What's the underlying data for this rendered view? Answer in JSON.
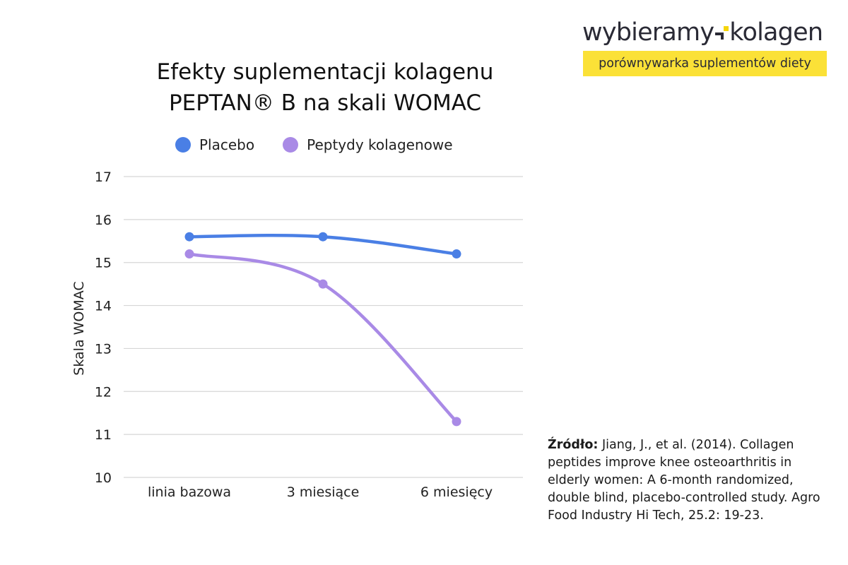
{
  "logo": {
    "name_left": "wybieramy",
    "name_right": "kolagen",
    "tagline": "porównywarka suplementów diety",
    "tagline_bg": "#fbe137"
  },
  "source": {
    "label": "Źródło:",
    "text": " Jiang, J., et al. (2014). Collagen peptides improve knee osteoarthritis in elderly women: A 6-month randomized, double blind, placebo-controlled study. Agro Food Industry Hi Tech, 25.2: 19-23."
  },
  "chart_data": {
    "type": "line",
    "title_line1": "Efekty suplementacji kolagenu",
    "title_line2": "PEPTAN® B na skali WOMAC",
    "xlabel": "",
    "ylabel": "Skala WOMAC",
    "categories": [
      "linia bazowa",
      "3 miesiące",
      "6 miesięcy"
    ],
    "ylim": [
      10,
      17
    ],
    "yticks": [
      10,
      11,
      12,
      13,
      14,
      15,
      16,
      17
    ],
    "grid": true,
    "legend_position": "top",
    "smooth": true,
    "series": [
      {
        "name": "Placebo",
        "color": "#4a7fe5",
        "values": [
          15.6,
          15.6,
          15.2
        ]
      },
      {
        "name": "Peptydy kolagenowe",
        "color": "#a98ae6",
        "values": [
          15.2,
          14.5,
          11.3
        ]
      }
    ]
  }
}
